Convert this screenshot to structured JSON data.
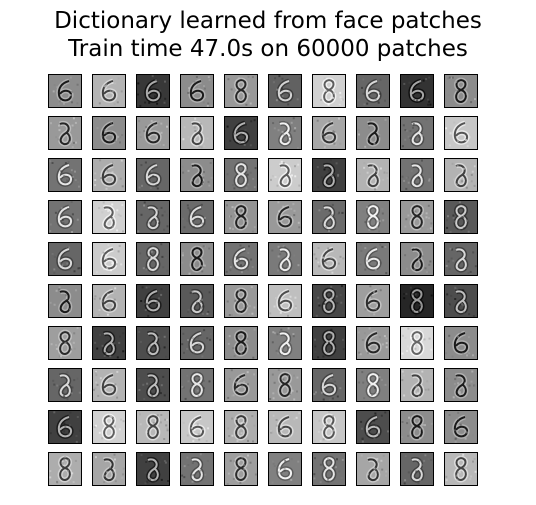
{
  "title": {
    "line1": "Dictionary learned from face patches",
    "line2": "Train time 47.0s on 60000 patches"
  },
  "grid": {
    "rows": 10,
    "cols": 10,
    "brightness": [
      [
        0.55,
        0.7,
        0.22,
        0.55,
        0.6,
        0.38,
        0.82,
        0.4,
        0.2,
        0.55
      ],
      [
        0.6,
        0.55,
        0.6,
        0.72,
        0.25,
        0.5,
        0.65,
        0.55,
        0.45,
        0.78
      ],
      [
        0.45,
        0.68,
        0.4,
        0.55,
        0.45,
        0.8,
        0.25,
        0.7,
        0.45,
        0.7
      ],
      [
        0.45,
        0.82,
        0.4,
        0.42,
        0.58,
        0.6,
        0.42,
        0.5,
        0.6,
        0.35
      ],
      [
        0.4,
        0.8,
        0.4,
        0.55,
        0.45,
        0.48,
        0.72,
        0.48,
        0.55,
        0.4
      ],
      [
        0.55,
        0.7,
        0.25,
        0.35,
        0.6,
        0.75,
        0.28,
        0.62,
        0.15,
        0.3
      ],
      [
        0.62,
        0.25,
        0.3,
        0.4,
        0.55,
        0.5,
        0.25,
        0.6,
        0.85,
        0.55
      ],
      [
        0.4,
        0.7,
        0.3,
        0.45,
        0.6,
        0.6,
        0.4,
        0.5,
        0.7,
        0.55
      ],
      [
        0.25,
        0.82,
        0.72,
        0.78,
        0.68,
        0.72,
        0.78,
        0.3,
        0.55,
        0.55
      ],
      [
        0.68,
        0.65,
        0.25,
        0.45,
        0.62,
        0.5,
        0.45,
        0.65,
        0.4,
        0.72
      ]
    ]
  }
}
